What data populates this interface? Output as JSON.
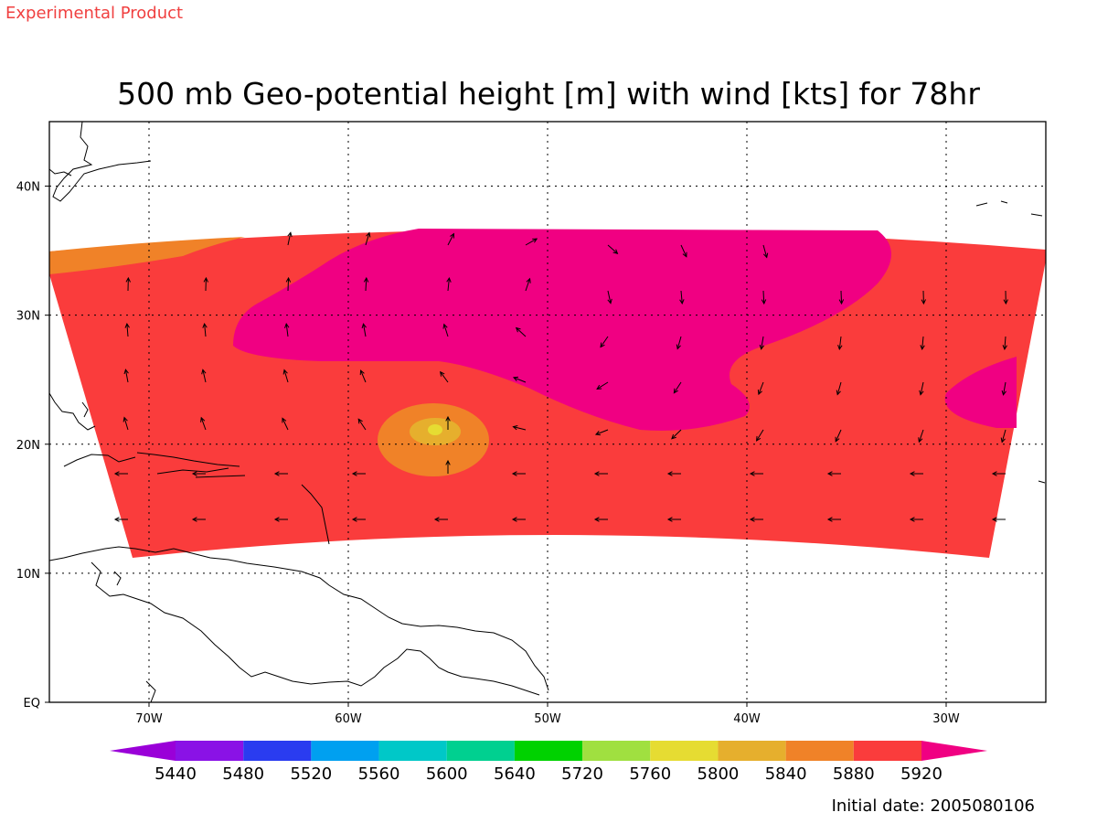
{
  "header": {
    "product_label": "Experimental Product",
    "title": "500 mb Geo-potential height [m] with wind [kts] for 78hr"
  },
  "footer": {
    "initial_date": "Initial date: 2005080106"
  },
  "map": {
    "lon_range": [
      -75,
      -25
    ],
    "lat_range": [
      0,
      45
    ],
    "lat_ticks": [
      {
        "value": 40,
        "label": "40N"
      },
      {
        "value": 30,
        "label": "30N"
      },
      {
        "value": 20,
        "label": "20N"
      },
      {
        "value": 10,
        "label": "10N"
      },
      {
        "value": 0,
        "label": "EQ"
      }
    ],
    "lon_ticks": [
      {
        "value": -70,
        "label": "70W"
      },
      {
        "value": -60,
        "label": "60W"
      },
      {
        "value": -50,
        "label": "50W"
      },
      {
        "value": -40,
        "label": "40W"
      },
      {
        "value": -30,
        "label": "30W"
      }
    ],
    "gridlines": true,
    "wind_arrows": true
  },
  "colorbar": {
    "labels": [
      "5440",
      "5480",
      "5520",
      "5560",
      "5600",
      "5640",
      "5720",
      "5760",
      "5800",
      "5840",
      "5880",
      "5920"
    ],
    "colors": [
      "#9a00d8",
      "#8a12e6",
      "#2a3cf0",
      "#00a0f0",
      "#00c8c8",
      "#00d090",
      "#00d200",
      "#a0e040",
      "#e6dc32",
      "#e6af2d",
      "#f08228",
      "#fa3c3c",
      "#f00082"
    ],
    "field_colors": {
      "base": "#fa3c3c",
      "high": "#f00082",
      "mid": "#f08228",
      "low": "#e6af2d",
      "center": "#e6dc32"
    }
  }
}
